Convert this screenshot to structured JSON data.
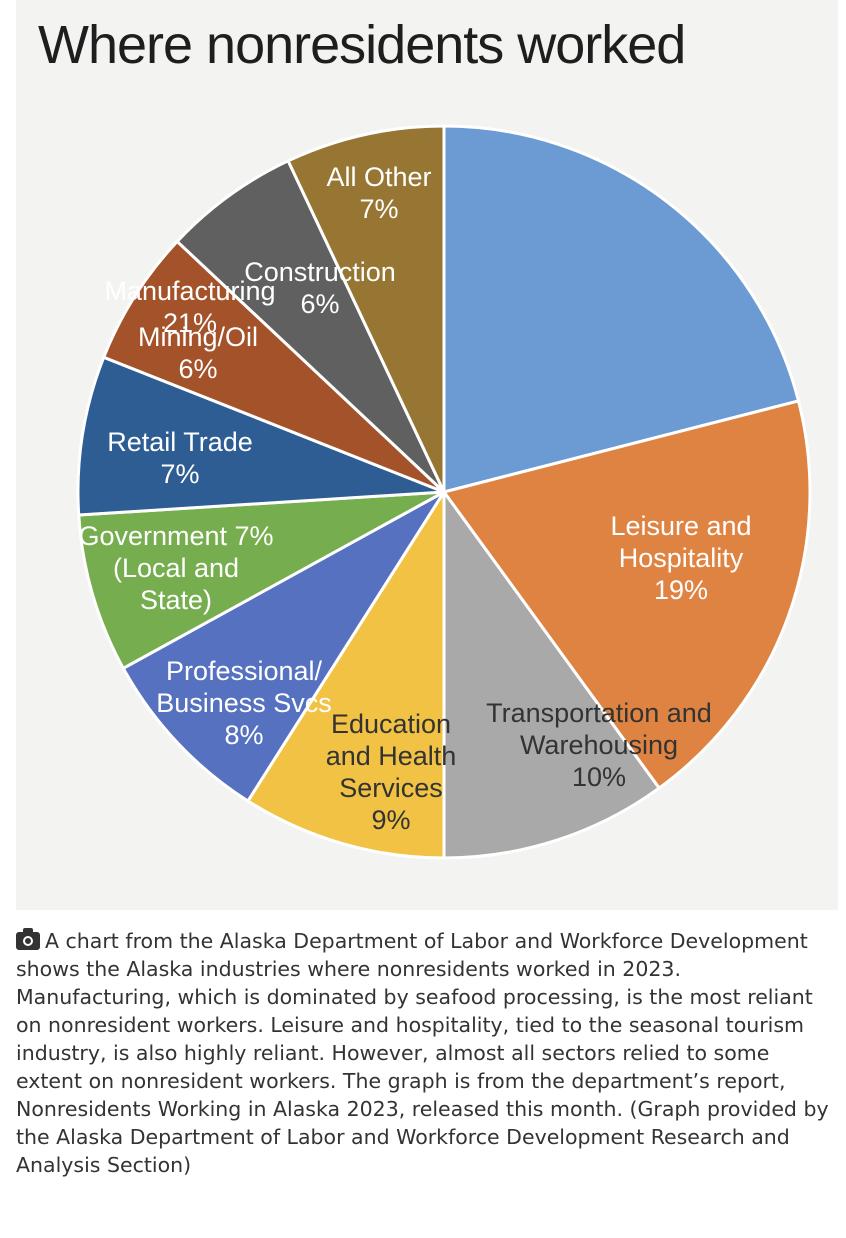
{
  "chart_data": {
    "type": "pie",
    "title": "Where nonresidents worked",
    "slices": [
      {
        "label": "Manufacturing",
        "value_label": "21%",
        "value": 21,
        "color": "#6b9bd2"
      },
      {
        "label": "Leisure and Hospitality",
        "value_label": "19%",
        "value": 19,
        "color": "#df8342"
      },
      {
        "label": "Transportation and Warehousing",
        "value_label": "10%",
        "value": 10,
        "color": "#a9a9a9"
      },
      {
        "label": "Education and Health Services",
        "value_label": "9%",
        "value": 9,
        "color": "#f1c243"
      },
      {
        "label": "Professional/ Business Svcs",
        "value_label": "8%",
        "value": 8,
        "color": "#5571bf"
      },
      {
        "label": "Government (Local and State)",
        "value_label": "7%",
        "value": 7,
        "color": "#76ad4e"
      },
      {
        "label": "Retail Trade",
        "value_label": "7%",
        "value": 7,
        "color": "#2e5d93"
      },
      {
        "label": "Mining/Oil",
        "value_label": "6%",
        "value": 6,
        "color": "#a3522a"
      },
      {
        "label": "Construction",
        "value_label": "6%",
        "value": 6,
        "color": "#606060"
      },
      {
        "label": "All Other",
        "value_label": "7%",
        "value": 7,
        "color": "#977633"
      }
    ],
    "legend": "none",
    "data_labels": "inside slices"
  },
  "caption": {
    "icon": "camera-icon",
    "text": "A chart from the Alaska Department of Labor and Workforce Development shows the Alaska industries where nonresidents worked in 2023. Manufacturing, which is dominated by seafood processing, is the most reliant on nonresident workers. Leisure and hospitality, tied to the seasonal tourism industry, is also highly reliant. However, almost all sectors relied to some extent on nonresident workers. The graph is from the department’s report, Nonresidents Working in Alaska 2023, released this month. (Graph provided by the Alaska Department of Labor and Workforce Development Research and Analysis Section)"
  }
}
